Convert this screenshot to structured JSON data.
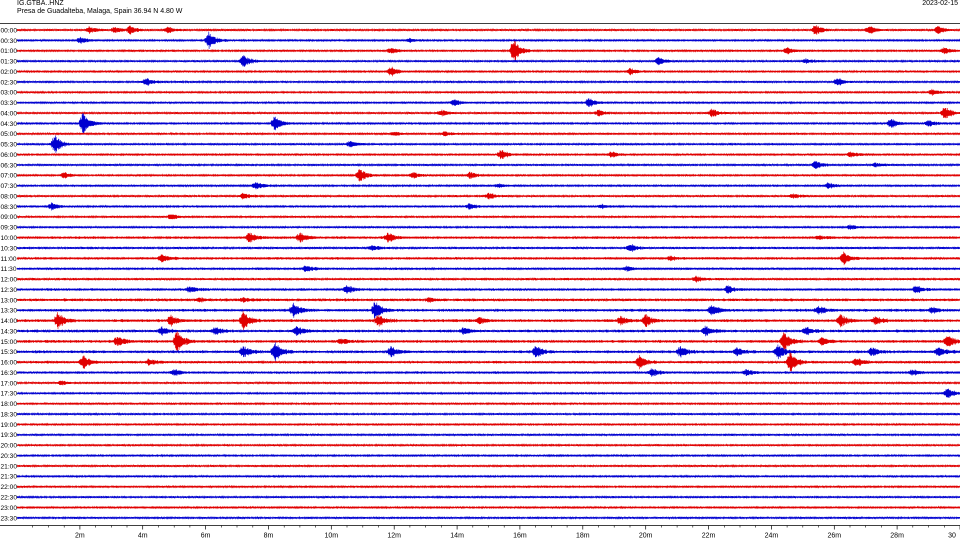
{
  "header": {
    "station_id": "IG.GTBA..HNZ",
    "location": "Presa de Guadalteba, Malaga, Spain  36.94 N 4.80 W",
    "date": "2023-02-15"
  },
  "colors": {
    "odd_rows": "#e00000",
    "even_rows": "#0000d0",
    "axis": "#000000"
  },
  "chart_data": {
    "type": "line",
    "kind": "helicorder",
    "row_labels": [
      "00:00",
      "00:30",
      "01:00",
      "01:30",
      "02:00",
      "02:30",
      "03:00",
      "03:30",
      "04:00",
      "04:30",
      "05:00",
      "05:30",
      "06:00",
      "06:30",
      "07:00",
      "07:30",
      "08:00",
      "08:30",
      "09:00",
      "09:30",
      "10:00",
      "10:30",
      "11:00",
      "11:30",
      "12:00",
      "12:30",
      "13:00",
      "13:30",
      "14:00",
      "14:30",
      "15:00",
      "15:30",
      "16:00",
      "16:30",
      "17:00",
      "17:30",
      "18:00",
      "18:30",
      "19:00",
      "19:30",
      "20:00",
      "20:30",
      "21:00",
      "21:30",
      "22:00",
      "22:30",
      "23:00",
      "23:30"
    ],
    "x_ticks": [
      "2m",
      "4m",
      "6m",
      "8m",
      "10m",
      "12m",
      "14m",
      "16m",
      "18m",
      "20m",
      "22m",
      "24m",
      "26m",
      "28m",
      "30"
    ],
    "x_tick_values": [
      2,
      4,
      6,
      8,
      10,
      12,
      14,
      16,
      18,
      20,
      22,
      24,
      26,
      28,
      30
    ],
    "xlim": [
      0,
      30
    ],
    "minor_tick_step": 0.5,
    "noise": [
      1,
      1,
      1,
      1,
      1,
      1,
      1,
      1,
      1,
      1,
      1,
      1,
      1,
      1,
      1,
      1,
      1,
      1,
      1,
      1,
      1.2,
      1.2,
      1.2,
      1.2,
      1.2,
      1.2,
      1.4,
      1.4,
      1.4,
      1.4,
      1.4,
      1.4,
      1.3,
      1.2,
      1,
      1,
      1,
      1,
      1,
      1,
      1,
      1,
      1,
      1,
      1,
      1,
      1,
      1
    ],
    "events": [
      [
        [
          2.3,
          3
        ],
        [
          3.1,
          3
        ],
        [
          3.6,
          4
        ],
        [
          4.8,
          3
        ],
        [
          25.4,
          5
        ],
        [
          27.1,
          4
        ],
        [
          29.3,
          4
        ]
      ],
      [
        [
          6.1,
          8
        ],
        [
          2,
          3
        ],
        [
          12.5,
          2
        ]
      ],
      [
        [
          15.8,
          12
        ],
        [
          11.9,
          3
        ],
        [
          24.5,
          3
        ],
        [
          29.5,
          3
        ]
      ],
      [
        [
          7.2,
          6
        ],
        [
          20.4,
          4
        ],
        [
          25.1,
          2
        ]
      ],
      [
        [
          11.9,
          5
        ],
        [
          19.5,
          3
        ]
      ],
      [
        [
          4.1,
          4
        ],
        [
          26.1,
          4
        ]
      ],
      [
        [
          29.1,
          3
        ]
      ],
      [
        [
          18.2,
          5
        ],
        [
          13.9,
          3
        ]
      ],
      [
        [
          29.5,
          7
        ],
        [
          13.5,
          3
        ],
        [
          18.5,
          3
        ],
        [
          22.1,
          4
        ]
      ],
      [
        [
          2.1,
          10
        ],
        [
          8.2,
          8
        ],
        [
          27.8,
          5
        ],
        [
          29,
          3
        ]
      ],
      [
        [
          12,
          2
        ],
        [
          13.6,
          2
        ]
      ],
      [
        [
          1.2,
          9
        ],
        [
          10.6,
          3
        ]
      ],
      [
        [
          15.4,
          5
        ],
        [
          18.9,
          3
        ],
        [
          26.5,
          3
        ]
      ],
      [
        [
          25.4,
          4
        ],
        [
          27.3,
          2
        ]
      ],
      [
        [
          1.5,
          3
        ],
        [
          10.9,
          7
        ],
        [
          12.6,
          3
        ],
        [
          14.4,
          3
        ]
      ],
      [
        [
          7.6,
          4
        ],
        [
          25.8,
          3
        ],
        [
          15.3,
          2
        ]
      ],
      [
        [
          7.2,
          3
        ],
        [
          15,
          3
        ],
        [
          24.7,
          2
        ]
      ],
      [
        [
          1.1,
          4
        ],
        [
          14.4,
          3
        ],
        [
          18.6,
          2
        ]
      ],
      [
        [
          4.9,
          3
        ]
      ],
      [
        [
          26.5,
          2
        ]
      ],
      [
        [
          7.4,
          5
        ],
        [
          9,
          5
        ],
        [
          11.8,
          5
        ],
        [
          25.5,
          2
        ]
      ],
      [
        [
          19.5,
          4
        ],
        [
          11.3,
          3
        ]
      ],
      [
        [
          4.6,
          4
        ],
        [
          26.3,
          6
        ],
        [
          20.8,
          2
        ]
      ],
      [
        [
          9.2,
          3
        ],
        [
          19.4,
          2
        ]
      ],
      [
        [
          21.6,
          3
        ]
      ],
      [
        [
          5.5,
          3
        ],
        [
          10.5,
          4
        ],
        [
          22.6,
          4
        ],
        [
          28.6,
          4
        ]
      ],
      [
        [
          5.8,
          2
        ],
        [
          7.2,
          2
        ],
        [
          13.1,
          2
        ]
      ],
      [
        [
          8.8,
          7
        ],
        [
          11.4,
          9
        ],
        [
          22.1,
          5
        ],
        [
          25.5,
          4
        ],
        [
          29.1,
          3
        ]
      ],
      [
        [
          1.3,
          8
        ],
        [
          4.9,
          5
        ],
        [
          7.2,
          9
        ],
        [
          11.5,
          6
        ],
        [
          14.7,
          3
        ],
        [
          19.2,
          4
        ],
        [
          20,
          6
        ],
        [
          26.2,
          6
        ],
        [
          27.3,
          4
        ]
      ],
      [
        [
          4.6,
          4
        ],
        [
          6.3,
          4
        ],
        [
          8.9,
          5
        ],
        [
          14.2,
          3
        ],
        [
          21.9,
          5
        ],
        [
          25.1,
          4
        ]
      ],
      [
        [
          3.2,
          5
        ],
        [
          5.1,
          11
        ],
        [
          10.3,
          3
        ],
        [
          24.4,
          9
        ],
        [
          25.6,
          4
        ],
        [
          29.6,
          6
        ]
      ],
      [
        [
          7.2,
          6
        ],
        [
          8.2,
          10
        ],
        [
          11.9,
          5
        ],
        [
          16.5,
          6
        ],
        [
          21.1,
          5
        ],
        [
          22.9,
          4
        ],
        [
          24.2,
          7
        ],
        [
          27.2,
          4
        ],
        [
          29.3,
          5
        ]
      ],
      [
        [
          2.1,
          7
        ],
        [
          4.2,
          3
        ],
        [
          19.8,
          6
        ],
        [
          24.6,
          10
        ],
        [
          26.7,
          4
        ]
      ],
      [
        [
          5,
          3
        ],
        [
          20.2,
          4
        ],
        [
          23.2,
          3
        ],
        [
          28.5,
          3
        ]
      ],
      [
        [
          1.4,
          2
        ]
      ],
      [
        [
          29.6,
          5
        ]
      ],
      [],
      [],
      [],
      [],
      [],
      [],
      [],
      [],
      [],
      [],
      [],
      []
    ]
  }
}
